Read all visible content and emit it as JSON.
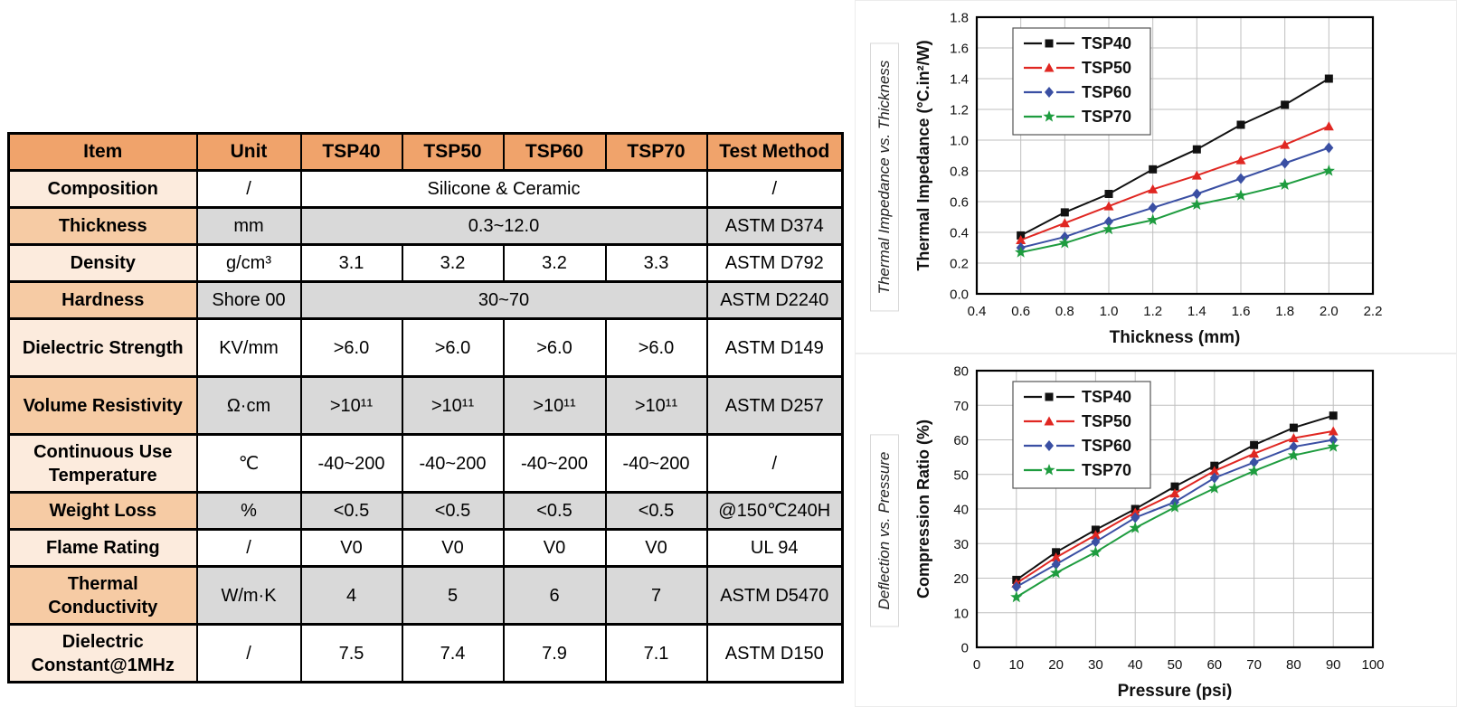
{
  "table": {
    "headers": [
      "Item",
      "Unit",
      "TSP40",
      "TSP50",
      "TSP60",
      "TSP70",
      "Test Method"
    ],
    "rows": [
      {
        "item": "Composition",
        "unit": "/",
        "merged": "Silicone & Ceramic",
        "test": "/"
      },
      {
        "item": "Thickness",
        "unit": "mm",
        "merged": "0.3~12.0",
        "test": "ASTM D374"
      },
      {
        "item": "Density",
        "unit": "g/cm³",
        "values": [
          "3.1",
          "3.2",
          "3.2",
          "3.3"
        ],
        "test": "ASTM D792"
      },
      {
        "item": "Hardness",
        "unit": "Shore 00",
        "merged": "30~70",
        "test": "ASTM D2240"
      },
      {
        "item": "Dielectric Strength",
        "unit": "KV/mm",
        "values": [
          ">6.0",
          ">6.0",
          ">6.0",
          ">6.0"
        ],
        "test": "ASTM D149"
      },
      {
        "item": "Volume Resistivity",
        "unit": "Ω·cm",
        "values": [
          ">10¹¹",
          ">10¹¹",
          ">10¹¹",
          ">10¹¹"
        ],
        "test": "ASTM D257"
      },
      {
        "item": "Continuous Use Temperature",
        "unit": "℃",
        "values": [
          "-40~200",
          "-40~200",
          "-40~200",
          "-40~200"
        ],
        "test": "/"
      },
      {
        "item": "Weight Loss",
        "unit": "%",
        "values": [
          "<0.5",
          "<0.5",
          "<0.5",
          "<0.5"
        ],
        "test": "@150℃240H"
      },
      {
        "item": "Flame Rating",
        "unit": "/",
        "values": [
          "V0",
          "V0",
          "V0",
          "V0"
        ],
        "test": "UL 94"
      },
      {
        "item": "Thermal Conductivity",
        "unit": "W/m·K",
        "values": [
          "4",
          "5",
          "6",
          "7"
        ],
        "test": "ASTM D5470"
      },
      {
        "item": "Dielectric Constant@1MHz",
        "unit": "/",
        "values": [
          "7.5",
          "7.4",
          "7.9",
          "7.1"
        ],
        "test": "ASTM D150"
      }
    ]
  },
  "side_labels": [
    "Thermal Impedance vs. Thickness",
    "Deflection vs. Pressure"
  ],
  "colors": {
    "header_orange": "#F0A36B",
    "item_light": "#FCEBDD",
    "item_dark": "#F6CBA4",
    "row_gray": "#D9D9D9",
    "tsp40": "#111111",
    "tsp50": "#E02722",
    "tsp60": "#3A4FA3",
    "tsp70": "#1E9C3F"
  },
  "chart_data": [
    {
      "name": "thermal-impedance-chart",
      "type": "line",
      "title": "Thermal Impedance vs. Thickness",
      "xlabel": "Thickness (mm)",
      "ylabel": "Thermal Impedance (°C.in²/W)",
      "xlim": [
        0.4,
        2.2
      ],
      "xstep": 0.2,
      "xdec": 1,
      "ylim": [
        0.0,
        1.8
      ],
      "ystep": 0.2,
      "ydec": 1,
      "grid": true,
      "legend_position": "top-left",
      "x": [
        0.6,
        0.8,
        1.0,
        1.2,
        1.4,
        1.6,
        1.8,
        2.0
      ],
      "series": [
        {
          "name": "TSP40",
          "marker": "square",
          "color": "#111111",
          "values": [
            0.38,
            0.53,
            0.65,
            0.81,
            0.94,
            1.1,
            1.23,
            1.4
          ]
        },
        {
          "name": "TSP50",
          "marker": "triangle",
          "color": "#E02722",
          "values": [
            0.35,
            0.46,
            0.57,
            0.68,
            0.77,
            0.87,
            0.97,
            1.09
          ]
        },
        {
          "name": "TSP60",
          "marker": "diamond",
          "color": "#3A4FA3",
          "values": [
            0.3,
            0.37,
            0.47,
            0.56,
            0.65,
            0.75,
            0.85,
            0.95
          ]
        },
        {
          "name": "TSP70",
          "marker": "star",
          "color": "#1E9C3F",
          "values": [
            0.27,
            0.33,
            0.42,
            0.48,
            0.58,
            0.64,
            0.71,
            0.8
          ]
        }
      ]
    },
    {
      "name": "compression-ratio-chart",
      "type": "line",
      "title": "Deflection vs. Pressure",
      "xlabel": "Pressure (psi)",
      "ylabel": "Compression Ratio (%)",
      "xlim": [
        0,
        100
      ],
      "xstep": 10,
      "xdec": 0,
      "ylim": [
        0,
        80
      ],
      "ystep": 10,
      "ydec": 0,
      "grid": true,
      "legend_position": "top-left",
      "x": [
        10,
        20,
        30,
        40,
        50,
        60,
        70,
        80,
        90
      ],
      "series": [
        {
          "name": "TSP40",
          "marker": "square",
          "color": "#111111",
          "values": [
            19.5,
            27.5,
            34,
            40,
            46.5,
            52.5,
            58.5,
            63.5,
            67
          ]
        },
        {
          "name": "TSP50",
          "marker": "triangle",
          "color": "#E02722",
          "values": [
            18.5,
            26,
            32.5,
            39,
            44.5,
            51,
            56,
            60.5,
            62.5
          ]
        },
        {
          "name": "TSP60",
          "marker": "diamond",
          "color": "#3A4FA3",
          "values": [
            17.5,
            24,
            30.5,
            37.5,
            42,
            49,
            53.5,
            58,
            60
          ]
        },
        {
          "name": "TSP70",
          "marker": "star",
          "color": "#1E9C3F",
          "values": [
            14.5,
            21.5,
            27.5,
            34.5,
            40.5,
            46,
            51,
            55.5,
            58
          ]
        }
      ]
    }
  ]
}
